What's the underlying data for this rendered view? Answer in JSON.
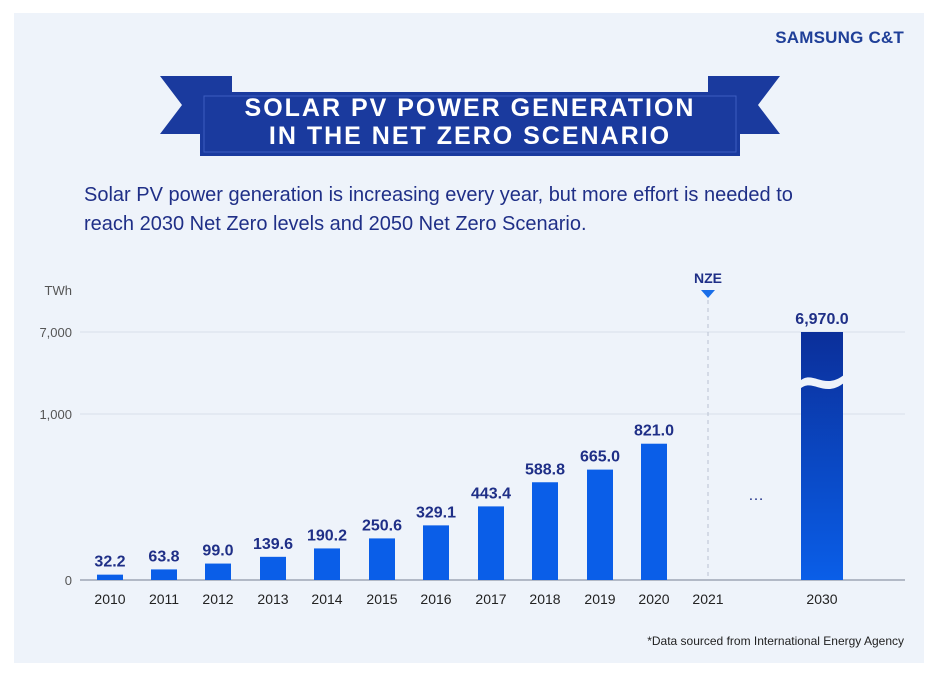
{
  "brand": "SAMSUNG C&T",
  "title_lines": [
    "SOLAR PV POWER GENERATION",
    "IN THE NET ZERO SCENARIO"
  ],
  "subtitle_lines": [
    "Solar PV power generation is increasing every year, but more effort is needed to",
    "reach 2030 Net Zero levels and 2050 Net Zero Scenario."
  ],
  "footnote": "*Data sourced from International Energy Agency",
  "colors": {
    "bar": "#0a5ee8",
    "bar_2030_top": "#0b2f9a",
    "bar_2030_bottom": "#0a5ee8",
    "label": "#1f2f87",
    "ribbon": "#1a3a9e",
    "ribbon_dark": "#0d2473",
    "card": "#eef3fa"
  },
  "chart_data": {
    "type": "bar",
    "ylabel": "TWh",
    "y_ticks": [
      "0",
      "1,000",
      "7,000"
    ],
    "y_scale": "broken",
    "categories": [
      "2010",
      "2011",
      "2012",
      "2013",
      "2014",
      "2015",
      "2016",
      "2017",
      "2018",
      "2019",
      "2020",
      "2021",
      "2030"
    ],
    "values": [
      32.2,
      63.8,
      99.0,
      139.6,
      190.2,
      250.6,
      329.1,
      443.4,
      588.8,
      665.0,
      821.0,
      null,
      6970.0
    ],
    "value_labels": [
      "32.2",
      "63.8",
      "99.0",
      "139.6",
      "190.2",
      "250.6",
      "329.1",
      "443.4",
      "588.8",
      "665.0",
      "821.0",
      "",
      "6,970.0"
    ],
    "annotation": "NZE",
    "ellipsis": "…",
    "grid": true
  }
}
